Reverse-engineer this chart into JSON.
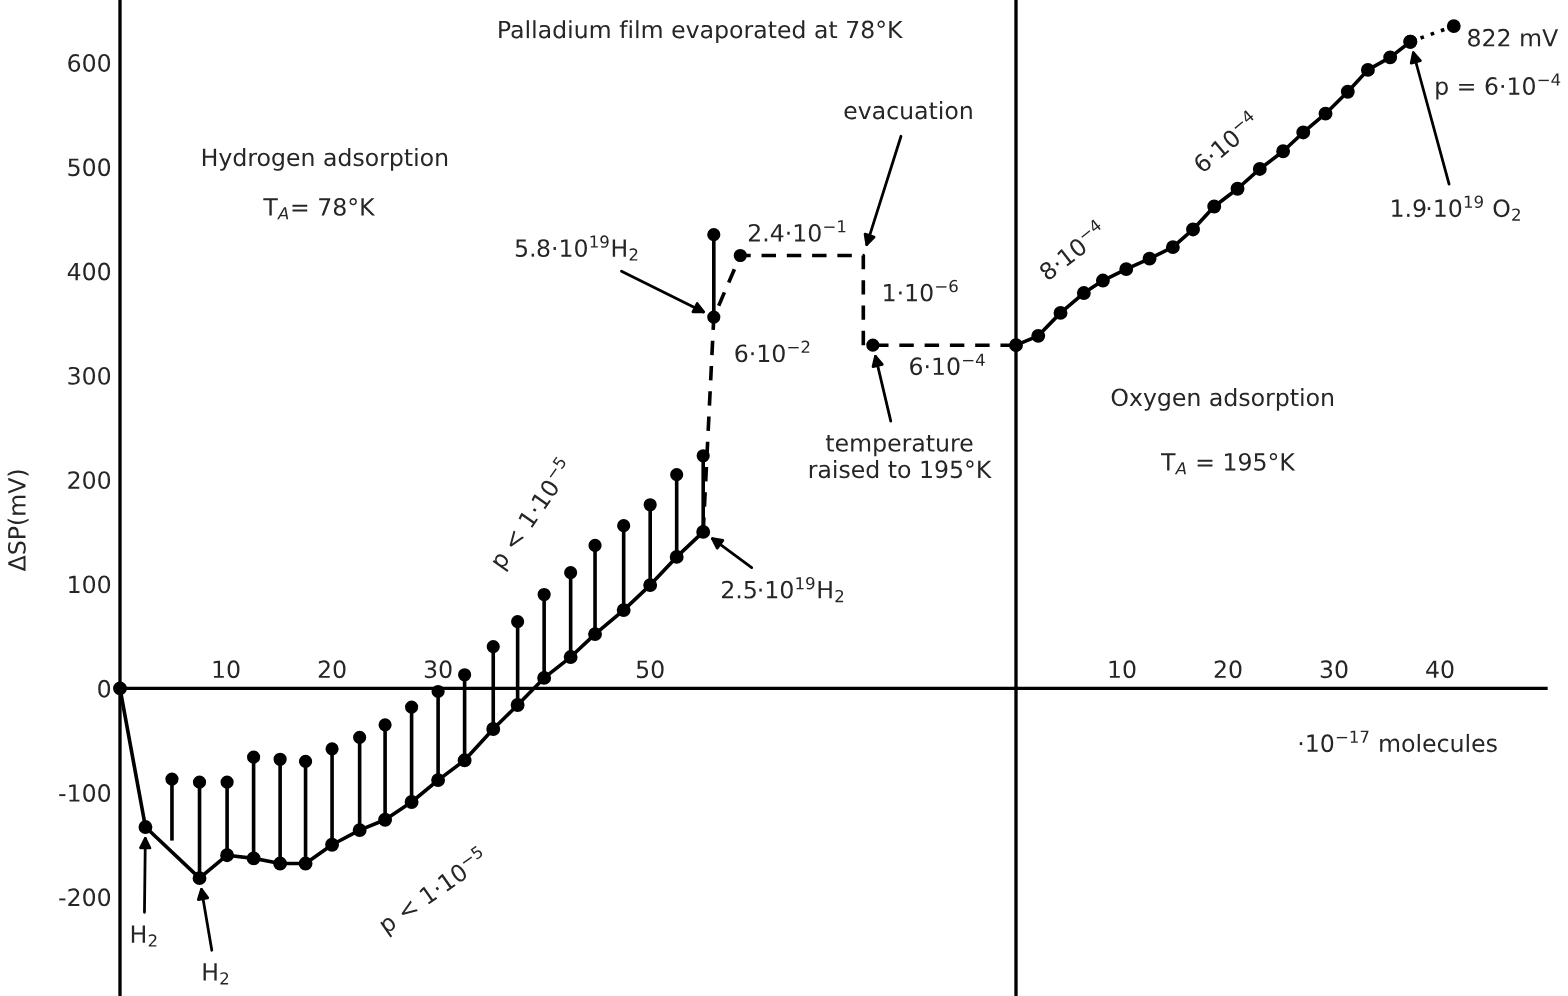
{
  "chart_data": [
    {
      "type": "line",
      "title": "Palladium film evaporated at 78°K",
      "ylabel": "ΔSP(mV)",
      "xlim": [
        0,
        84.5
      ],
      "ylim": [
        -295,
        660
      ],
      "xticks": [
        10,
        20,
        30,
        50
      ],
      "yticks": [
        -200,
        -100,
        0,
        100,
        200,
        300,
        400,
        500,
        600
      ],
      "series": [
        {
          "color": "#000000",
          "marker": "circle",
          "x": [
            0,
            2.4,
            7.5,
            10.1,
            12.6,
            15.1,
            17.5,
            20,
            22.6,
            25,
            27.5,
            30,
            32.5,
            35.2,
            37.5,
            40,
            42.5,
            44.8,
            47.5,
            50,
            52.5,
            55
          ],
          "values": [
            0,
            -133,
            -182,
            -160,
            -163,
            -168,
            -168,
            -150,
            -136,
            -126,
            -109,
            -88,
            -69,
            -39,
            -16,
            10,
            30,
            52,
            75,
            99,
            126,
            150
          ]
        },
        {
          "type": "scatter",
          "color": "#000000",
          "marker": "circle",
          "x": [
            4.9,
            7.5,
            10.1,
            12.6,
            15.1,
            17.5,
            20,
            22.6,
            25,
            27.5,
            30,
            32.5,
            35.2,
            37.5,
            40,
            42.5,
            44.8,
            47.5,
            50,
            52.5,
            55,
            56,
            56,
            58.5,
            71
          ],
          "values": [
            -87,
            -90,
            -90,
            -66,
            -68,
            -70,
            -58,
            -47,
            -35,
            -18,
            -3,
            13,
            40,
            64,
            90,
            111,
            137,
            156,
            176,
            205,
            223,
            435,
            356,
            415,
            329
          ],
          "errors": [
            [
              -146,
              -87
            ],
            [
              -182,
              -90
            ],
            [
              -160,
              -90
            ],
            [
              -163,
              -66
            ],
            [
              -168,
              -68
            ],
            [
              -168,
              -70
            ],
            [
              -150,
              -58
            ],
            [
              -136,
              -47
            ],
            [
              -126,
              -35
            ],
            [
              -109,
              -18
            ],
            [
              -88,
              -3
            ],
            [
              -69,
              13
            ],
            [
              -39,
              40
            ],
            [
              -16,
              64
            ],
            [
              10,
              90
            ],
            [
              30,
              111
            ],
            [
              52,
              137
            ],
            [
              75,
              156
            ],
            [
              99,
              176
            ],
            [
              126,
              205
            ],
            [
              150,
              223
            ],
            [
              356,
              435
            ],
            null,
            null,
            null
          ]
        },
        {
          "color": "#000000",
          "line_style": "dashed",
          "marker": "none",
          "x": [
            55,
            56,
            58.5,
            70.1,
            70.1,
            71,
            84.5
          ],
          "values": [
            150,
            356,
            415,
            415,
            329,
            329,
            329
          ]
        }
      ],
      "annotations": [
        "Hydrogen adsorption",
        "T$_{A}$= 78°K",
        {
          "text": "5.8·10$^{19}$H$_{2}$",
          "x": 56,
          "y": 356
        },
        {
          "text": "6·10$^{−2}$",
          "x": 56,
          "y": 356
        },
        {
          "text": "2.4·10$^{−1}$",
          "x": 58.5,
          "y": 415
        },
        {
          "text": "evacuation",
          "x": 70.1,
          "y": 415
        },
        "1·10$^{−6}$",
        "6·10$^{−4}$",
        {
          "text": "temperature\nraised to 195°K",
          "x": 71,
          "y": 329
        },
        "p < 1·10$^{−5}$",
        "p < 1·10$^{−5}$",
        {
          "text": "2.5·10$^{19}$H$_{2}$",
          "x": 55,
          "y": 150
        },
        {
          "text": "H$_{2}$",
          "x": 2.4,
          "y": -133
        },
        {
          "text": "H$_{2}$",
          "x": 7.5,
          "y": -182
        }
      ]
    },
    {
      "type": "line",
      "xlabel": "·10$^{−17}$ molecules",
      "xlim": [
        0,
        50
      ],
      "ylim": [
        -295,
        660
      ],
      "xticks": [
        10,
        20,
        30,
        40
      ],
      "tick_labels": "x",
      "series": [
        {
          "color": "#000000",
          "marker": "circle",
          "x": [
            0,
            2.1,
            4.2,
            6.4,
            8.2,
            10.4,
            12.6,
            14.8,
            16.7,
            18.7,
            20.9,
            23,
            25.2,
            27.1,
            29.2,
            31.3,
            33.2,
            35.3,
            37.2
          ],
          "values": [
            329,
            338,
            360,
            379,
            391,
            402,
            412,
            423,
            440,
            462,
            479,
            498,
            515,
            533,
            551,
            572,
            593,
            605,
            620
          ]
        },
        {
          "color": "#000000",
          "line_style": "dotted",
          "marker": "circle",
          "x": [
            37.2,
            41.3
          ],
          "values": [
            620,
            635
          ]
        }
      ],
      "annotations": [
        {
          "text": "822 mV",
          "x": 41.3,
          "y": 635
        },
        "p = 6·10$^{−4}$",
        {
          "text": "1.9·10$^{19}$ O$_{2}$",
          "x": 37.2,
          "y": 620
        },
        "8·10$^{−4}$",
        "6·10$^{−4}$",
        "Oxygen adsorption",
        "T$_{A}$ = 195°K"
      ]
    }
  ]
}
